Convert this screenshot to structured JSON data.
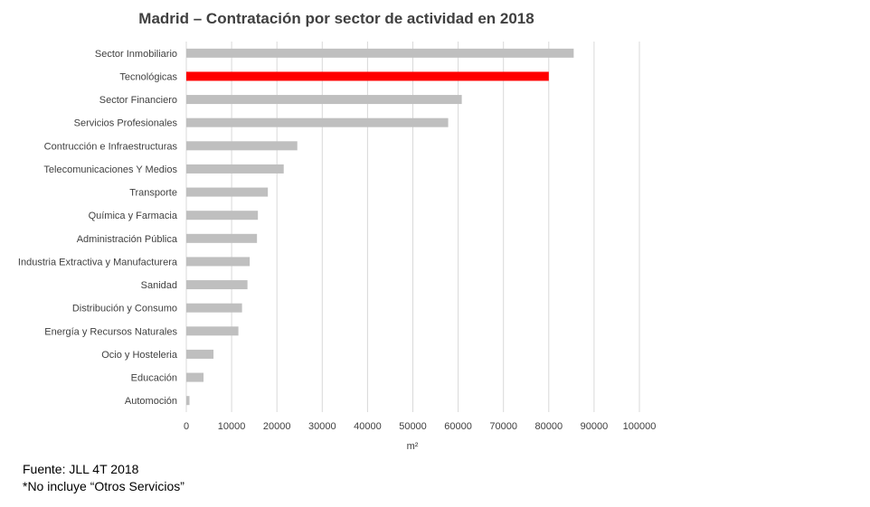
{
  "chart_data": {
    "type": "bar",
    "orientation": "horizontal",
    "title": "Madrid – Contratación por sector de actividad en 2018",
    "xlabel": "m²",
    "ylabel": "",
    "xlim": [
      0,
      100000
    ],
    "x_ticks": [
      "0",
      "10000",
      "20000",
      "30000",
      "40000",
      "50000",
      "60000",
      "70000",
      "80000",
      "90000",
      "100000"
    ],
    "grid": "vertical",
    "categories": [
      "Sector Inmobiliario",
      "Tecnológicas",
      "Sector Financiero",
      "Servicios Profesionales",
      "Contrucción e Infraestructuras",
      "Telecomunicaciones Y Medios",
      "Transporte",
      "Química y Farmacia",
      "Administración Pública",
      "Industria Extractiva y Manufacturera",
      "Sanidad",
      "Distribución y Consumo",
      "Energía y Recursos Naturales",
      "Ocio y Hosteleria",
      "Educación",
      "Automoción"
    ],
    "values": [
      85500,
      80000,
      60800,
      57800,
      24500,
      21500,
      18000,
      15800,
      15600,
      14000,
      13500,
      12300,
      11500,
      6000,
      3800,
      700
    ],
    "colors": {
      "default": "#bfbfbf",
      "highlight": "#ff0000",
      "highlight_category": "Tecnológicas",
      "grid": "#d9d9d9",
      "text": "#404040"
    }
  },
  "footer": {
    "source": "Fuente: JLL 4T 2018",
    "note": "*No incluye “Otros Servicios”"
  }
}
